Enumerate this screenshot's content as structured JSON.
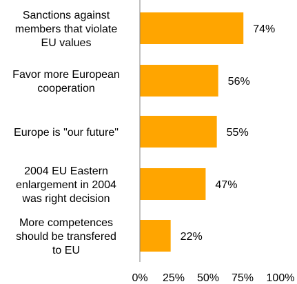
{
  "chart_data": {
    "type": "bar",
    "orientation": "horizontal",
    "categories": [
      [
        "Sanctions against",
        "members that violate",
        "EU values"
      ],
      [
        "Favor more European",
        "cooperation"
      ],
      [
        "Europe is \"our future\""
      ],
      [
        "2004 EU Eastern",
        "enlargement in 2004",
        "was right decision"
      ],
      [
        "More competences",
        "should be transfered",
        "to EU"
      ]
    ],
    "values": [
      74,
      56,
      55,
      47,
      22
    ],
    "value_labels": [
      "74%",
      "56%",
      "55%",
      "47%",
      "22%"
    ],
    "xlim": [
      0,
      100
    ],
    "x_ticks": [
      "0%",
      "25%",
      "50%",
      "75%",
      "100%"
    ],
    "bar_color": "#FFA500",
    "axis_color": "#808080",
    "grid": false,
    "legend": "none"
  }
}
